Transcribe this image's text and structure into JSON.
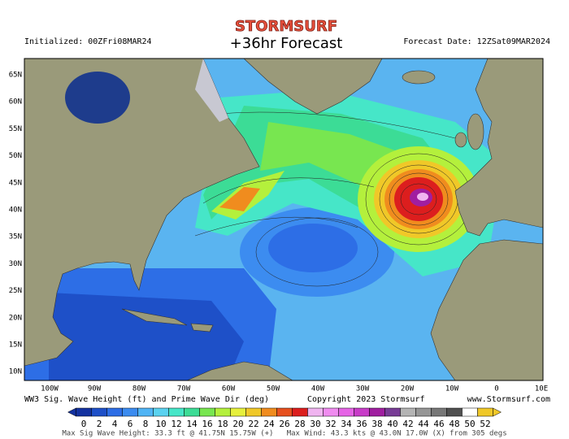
{
  "header": {
    "logo": "STORMSURF",
    "title": "+36hr Forecast",
    "initialized": "Initialized: 00ZFri08MAR24",
    "forecast_date": "Forecast Date: 12ZSat09MAR2024"
  },
  "map": {
    "lat_labels": [
      "65N",
      "60N",
      "55N",
      "50N",
      "45N",
      "40N",
      "35N",
      "30N",
      "25N",
      "20N",
      "15N",
      "10N"
    ],
    "lon_labels": [
      "100W",
      "90W",
      "80W",
      "70W",
      "60W",
      "50W",
      "40W",
      "30W",
      "20W",
      "10W",
      "0",
      "10E"
    ]
  },
  "footer": {
    "caption": "WW3 Sig. Wave Height (ft) and Prime Wave Dir (deg)",
    "copyright": "Copyright 2023 Stormsurf",
    "url": "www.Stormsurf.com",
    "colorbar": {
      "labels": [
        0,
        2,
        4,
        6,
        8,
        10,
        12,
        14,
        16,
        18,
        20,
        22,
        24,
        26,
        28,
        30,
        32,
        34,
        36,
        38,
        40,
        42,
        44,
        46,
        48,
        50,
        52
      ],
      "colors": [
        "#1432a0",
        "#1e50c8",
        "#2d6ee6",
        "#3c8cf0",
        "#50b4f5",
        "#5ad2f0",
        "#46e6c8",
        "#3cdc96",
        "#78e650",
        "#b4f03c",
        "#e6f03c",
        "#f0c828",
        "#f08c1e",
        "#e6501e",
        "#dc1e1e",
        "#f0b4f0",
        "#f08cf0",
        "#e664e6",
        "#c83cc8",
        "#a01ea0",
        "#783c96",
        "#b4b4b4",
        "#969696",
        "#787878",
        "#505050",
        "#ffffff",
        "#f0c828"
      ]
    },
    "stats": "Max Sig Wave Height: 33.3 ft @ 41.75N 15.75W (+)   Max Wind: 43.3 kts @ 43.0N 17.0W (X) from 305 degs"
  }
}
